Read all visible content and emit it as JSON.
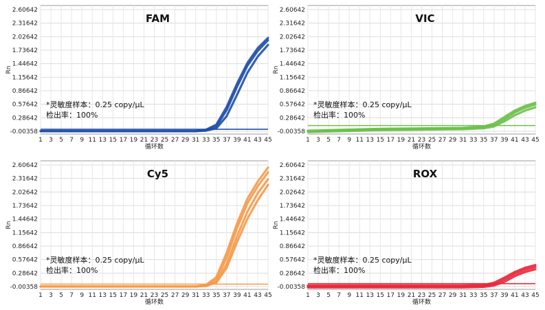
{
  "chart_data": [
    {
      "type": "line",
      "title": "FAM",
      "color": "#1f4fa8",
      "xlabel": "循环数",
      "ylabel": "Rn",
      "yticks": [
        "2.60642",
        "2.31642",
        "2.02642",
        "1.73642",
        "1.44642",
        "1.15642",
        "0.86642",
        "0.57642",
        "0.28642",
        "-0.00358"
      ],
      "xticks": [
        1,
        3,
        5,
        7,
        9,
        11,
        13,
        15,
        17,
        19,
        21,
        23,
        25,
        27,
        29,
        31,
        33,
        35,
        37,
        39,
        41,
        43,
        45
      ],
      "xlim": [
        1,
        45
      ],
      "ylim": [
        -0.00358,
        2.60642
      ],
      "threshold": 0.04,
      "annotation_lines": [
        "*灵敏度样本：0.25 copy/μL",
        "检出率：100%"
      ],
      "series": [
        {
          "x": [
            1,
            31,
            33,
            35,
            37,
            39,
            41,
            43,
            45
          ],
          "y": [
            0,
            0,
            0.02,
            0.1,
            0.45,
            0.95,
            1.4,
            1.72,
            1.95
          ]
        },
        {
          "x": [
            1,
            31,
            33,
            35,
            37,
            39,
            41,
            43,
            45
          ],
          "y": [
            0,
            0,
            0.01,
            0.06,
            0.32,
            0.78,
            1.25,
            1.6,
            1.85
          ]
        },
        {
          "x": [
            1,
            31,
            33,
            35,
            37,
            39,
            41,
            43,
            45
          ],
          "y": [
            0,
            0,
            0.03,
            0.14,
            0.52,
            1.02,
            1.46,
            1.78,
            2.0
          ]
        }
      ]
    },
    {
      "type": "line",
      "title": "VIC",
      "color": "#6cc04a",
      "xlabel": "循环数",
      "ylabel": "Rn",
      "yticks": [
        "2.60642",
        "2.31642",
        "2.02642",
        "1.73642",
        "1.44642",
        "1.15642",
        "0.86642",
        "0.57642",
        "0.28642",
        "-0.00358"
      ],
      "xticks": [
        1,
        3,
        5,
        7,
        9,
        11,
        13,
        15,
        17,
        19,
        21,
        23,
        25,
        27,
        29,
        31,
        33,
        35,
        37,
        39,
        41,
        43,
        45
      ],
      "xlim": [
        1,
        45
      ],
      "ylim": [
        -0.00358,
        2.60642
      ],
      "threshold": 0.12,
      "annotation_lines": [
        "*灵敏度样本：0.25 copy/μL",
        "检出率：100%"
      ],
      "series": [
        {
          "x": [
            1,
            15,
            31,
            35,
            37,
            39,
            41,
            43,
            45
          ],
          "y": [
            0.0,
            0.04,
            0.06,
            0.08,
            0.13,
            0.26,
            0.4,
            0.5,
            0.57
          ]
        },
        {
          "x": [
            1,
            15,
            31,
            35,
            37,
            39,
            41,
            43,
            45
          ],
          "y": [
            -0.02,
            0.02,
            0.04,
            0.06,
            0.1,
            0.21,
            0.34,
            0.44,
            0.51
          ]
        },
        {
          "x": [
            1,
            15,
            31,
            35,
            37,
            39,
            41,
            43,
            45
          ],
          "y": [
            0.01,
            0.05,
            0.07,
            0.1,
            0.16,
            0.3,
            0.44,
            0.54,
            0.61
          ]
        }
      ]
    },
    {
      "type": "line",
      "title": "Cy5",
      "color": "#f59a4a",
      "xlabel": "循环数",
      "ylabel": "Rn",
      "yticks": [
        "2.60642",
        "2.31642",
        "2.02642",
        "1.73642",
        "1.44642",
        "1.15642",
        "0.86642",
        "0.57642",
        "0.28642",
        "-0.00358"
      ],
      "xticks": [
        1,
        3,
        5,
        7,
        9,
        11,
        13,
        15,
        17,
        19,
        21,
        23,
        25,
        27,
        29,
        31,
        33,
        35,
        37,
        39,
        41,
        43,
        45
      ],
      "xlim": [
        1,
        45
      ],
      "ylim": [
        -0.00358,
        2.60642
      ],
      "threshold": 0.05,
      "annotation_lines": [
        "*灵敏度样本：0.25 copy/μL",
        "检出率：100%"
      ],
      "series": [
        {
          "x": [
            1,
            31,
            33,
            35,
            37,
            39,
            41,
            43,
            45
          ],
          "y": [
            0,
            0,
            0.02,
            0.15,
            0.62,
            1.25,
            1.78,
            2.15,
            2.45
          ]
        },
        {
          "x": [
            1,
            31,
            33,
            35,
            37,
            39,
            41,
            43,
            45
          ],
          "y": [
            0,
            0,
            0.01,
            0.1,
            0.48,
            1.08,
            1.6,
            2.0,
            2.3
          ]
        },
        {
          "x": [
            1,
            31,
            33,
            35,
            37,
            39,
            41,
            43,
            45
          ],
          "y": [
            0,
            0,
            0.03,
            0.2,
            0.72,
            1.35,
            1.88,
            2.25,
            2.55
          ]
        },
        {
          "x": [
            1,
            31,
            33,
            35,
            37,
            39,
            41,
            43,
            45
          ],
          "y": [
            0,
            0,
            0.015,
            0.08,
            0.4,
            0.95,
            1.45,
            1.85,
            2.18
          ]
        }
      ]
    },
    {
      "type": "line",
      "title": "ROX",
      "color": "#e8283a",
      "xlabel": "循环数",
      "ylabel": "Rn",
      "yticks": [
        "2.60642",
        "2.31642",
        "2.02642",
        "1.73642",
        "1.44642",
        "1.15642",
        "0.86642",
        "0.57642",
        "0.28642",
        "-0.00358"
      ],
      "xticks": [
        1,
        3,
        5,
        7,
        9,
        11,
        13,
        15,
        17,
        19,
        21,
        23,
        25,
        27,
        29,
        31,
        33,
        35,
        37,
        39,
        41,
        43,
        45
      ],
      "xlim": [
        1,
        45
      ],
      "ylim": [
        -0.00358,
        2.60642
      ],
      "threshold": 0.06,
      "annotation_lines": [
        "*灵敏度样本：0.25 copy/μL",
        "检出率：100%"
      ],
      "series": [
        {
          "x": [
            1,
            31,
            35,
            37,
            39,
            41,
            43,
            45
          ],
          "y": [
            0,
            0,
            0.01,
            0.05,
            0.15,
            0.27,
            0.36,
            0.42
          ]
        },
        {
          "x": [
            1,
            31,
            35,
            37,
            39,
            41,
            43,
            45
          ],
          "y": [
            -0.02,
            -0.02,
            -0.01,
            0.02,
            0.1,
            0.22,
            0.31,
            0.37
          ]
        },
        {
          "x": [
            1,
            31,
            35,
            37,
            39,
            41,
            43,
            45
          ],
          "y": [
            0.02,
            0.02,
            0.03,
            0.08,
            0.19,
            0.31,
            0.4,
            0.46
          ]
        }
      ]
    }
  ]
}
